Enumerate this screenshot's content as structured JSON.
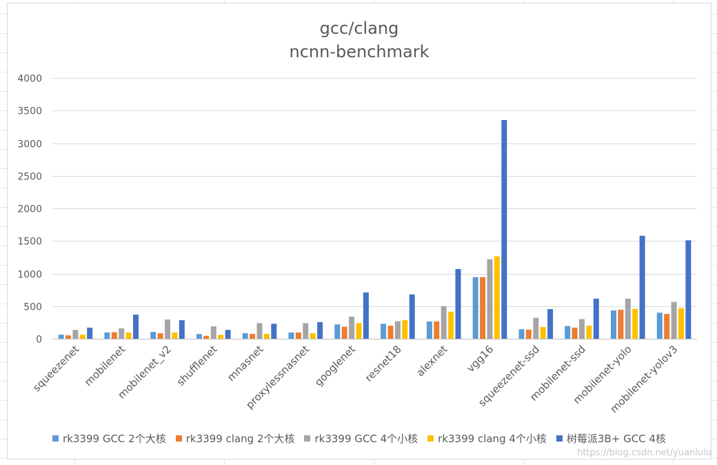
{
  "chart_data": {
    "type": "bar",
    "title": "gcc/clang",
    "subtitle": "ncnn-benchmark",
    "categories": [
      "squeezenet",
      "mobilenet",
      "mobilenet_v2",
      "shufflenet",
      "mnasnet",
      "proxylessnasnet",
      "googlenet",
      "resnet18",
      "alexnet",
      "vgg16",
      "squeezenet-ssd",
      "mobilenet-ssd",
      "mobilenet-yolo",
      "mobilenet-yolov3"
    ],
    "series": [
      {
        "name": "rk3399 GCC 2个大核",
        "color": "#5b9bd5",
        "values": [
          62,
          95,
          105,
          72,
          85,
          95,
          220,
          230,
          265,
          945,
          145,
          195,
          435,
          400
        ]
      },
      {
        "name": "rk3399 clang 2个大核",
        "color": "#ed7d31",
        "values": [
          52,
          100,
          85,
          45,
          75,
          95,
          185,
          200,
          265,
          945,
          140,
          170,
          445,
          380
        ]
      },
      {
        "name": "rk3399 GCC 4个小核",
        "color": "#a5a5a5",
        "values": [
          135,
          160,
          295,
          190,
          240,
          240,
          340,
          270,
          500,
          1220,
          320,
          300,
          615,
          565
        ]
      },
      {
        "name": "rk3399 clang 4个小核",
        "color": "#ffc000",
        "values": [
          62,
          95,
          95,
          60,
          75,
          85,
          240,
          285,
          415,
          1265,
          180,
          200,
          460,
          470
        ]
      },
      {
        "name": "树莓派3B+ GCC 4核",
        "color": "#4472c4",
        "values": [
          170,
          370,
          285,
          135,
          230,
          255,
          710,
          680,
          1070,
          3355,
          455,
          615,
          1580,
          1510
        ]
      }
    ],
    "ylim": [
      0,
      4000
    ],
    "yticks": [
      0,
      500,
      1000,
      1500,
      2000,
      2500,
      3000,
      3500,
      4000
    ],
    "grid": true,
    "legend_position": "bottom"
  },
  "watermark": "https://blog.csdn.net/yuanlulu"
}
